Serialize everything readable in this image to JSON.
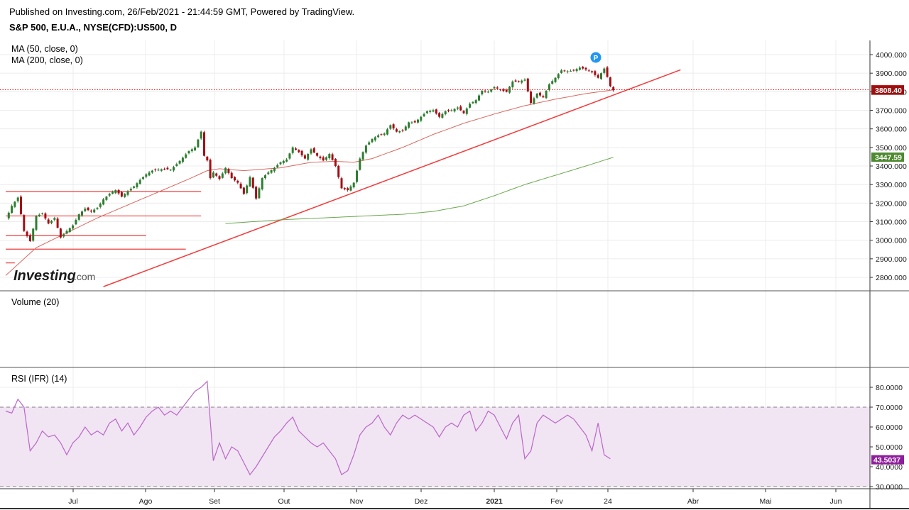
{
  "header": {
    "published": "Published on Investing.com, 26/Feb/2021 - 21:44:59 GMT, Powered by TradingView.",
    "symbol": "S&P 500, E.U.A., NYSE(CFD):US500, D"
  },
  "logo": {
    "brand": "Investing",
    "suffix": ".com"
  },
  "marker_badge": "P",
  "colors": {
    "up": "#2e7d32",
    "down": "#a50d14",
    "ma50": "#d9695f",
    "ma200": "#6aa84f",
    "trend": "#f23b3b",
    "rsi": "#b968c7",
    "rsi_band": "#f1e4f3",
    "price_line": "#e01010"
  },
  "chart_data": [
    {
      "type": "candlestick",
      "title": "S&P 500, E.U.A., NYSE(CFD):US500, D",
      "indicators": [
        "MA (50, close, 0)",
        "MA (200, close, 0)"
      ],
      "y_ticks": [
        "4000.000",
        "3900.000",
        "3800.000",
        "3700.000",
        "3600.000",
        "3500.000",
        "3400.000",
        "3300.000",
        "3200.000",
        "3100.000",
        "3000.000",
        "2900.000",
        "2800.000"
      ],
      "ylim": [
        2750,
        4040
      ],
      "price_labels": {
        "last": "3811.15",
        "close": "3808.40",
        "ma200": "3447.59"
      },
      "x_ticks": [
        "Jul",
        "Ago",
        "Set",
        "Out",
        "Nov",
        "Dez",
        "2021",
        "Fev",
        "24",
        "Abr",
        "Mai",
        "Jun"
      ],
      "x_ticks_bold": [
        "2021"
      ],
      "close_key": [
        [
          0,
          3112
        ],
        [
          2,
          3185
        ],
        [
          4,
          3230
        ],
        [
          6,
          3050
        ],
        [
          8,
          2995
        ],
        [
          10,
          3130
        ],
        [
          12,
          3145
        ],
        [
          14,
          3090
        ],
        [
          16,
          3120
        ],
        [
          18,
          3015
        ],
        [
          20,
          3050
        ],
        [
          22,
          3080
        ],
        [
          24,
          3140
        ],
        [
          26,
          3170
        ],
        [
          28,
          3155
        ],
        [
          30,
          3175
        ],
        [
          32,
          3220
        ],
        [
          34,
          3250
        ],
        [
          36,
          3270
        ],
        [
          38,
          3235
        ],
        [
          40,
          3265
        ],
        [
          42,
          3290
        ],
        [
          44,
          3325
        ],
        [
          46,
          3355
        ],
        [
          48,
          3375
        ],
        [
          50,
          3380
        ],
        [
          52,
          3385
        ],
        [
          54,
          3380
        ],
        [
          56,
          3410
        ],
        [
          58,
          3445
        ],
        [
          60,
          3480
        ],
        [
          62,
          3500
        ],
        [
          64,
          3585
        ],
        [
          65,
          3455
        ],
        [
          66,
          3430
        ],
        [
          67,
          3335
        ],
        [
          68,
          3365
        ],
        [
          70,
          3330
        ],
        [
          72,
          3390
        ],
        [
          74,
          3335
        ],
        [
          76,
          3310
        ],
        [
          78,
          3250
        ],
        [
          80,
          3340
        ],
        [
          82,
          3225
        ],
        [
          84,
          3335
        ],
        [
          86,
          3365
        ],
        [
          88,
          3390
        ],
        [
          90,
          3420
        ],
        [
          92,
          3435
        ],
        [
          94,
          3500
        ],
        [
          96,
          3475
        ],
        [
          98,
          3440
        ],
        [
          100,
          3490
        ],
        [
          102,
          3455
        ],
        [
          104,
          3430
        ],
        [
          106,
          3465
        ],
        [
          108,
          3400
        ],
        [
          110,
          3280
        ],
        [
          112,
          3270
        ],
        [
          114,
          3310
        ],
        [
          116,
          3440
        ],
        [
          118,
          3510
        ],
        [
          120,
          3545
        ],
        [
          122,
          3565
        ],
        [
          124,
          3575
        ],
        [
          126,
          3620
        ],
        [
          128,
          3585
        ],
        [
          130,
          3590
        ],
        [
          132,
          3635
        ],
        [
          134,
          3635
        ],
        [
          136,
          3665
        ],
        [
          138,
          3695
        ],
        [
          140,
          3700
        ],
        [
          142,
          3665
        ],
        [
          144,
          3695
        ],
        [
          146,
          3700
        ],
        [
          148,
          3715
        ],
        [
          150,
          3685
        ],
        [
          152,
          3735
        ],
        [
          154,
          3755
        ],
        [
          156,
          3805
        ],
        [
          158,
          3800
        ],
        [
          160,
          3825
        ],
        [
          162,
          3810
        ],
        [
          164,
          3800
        ],
        [
          166,
          3855
        ],
        [
          168,
          3855
        ],
        [
          170,
          3865
        ],
        [
          172,
          3740
        ],
        [
          174,
          3790
        ],
        [
          176,
          3770
        ],
        [
          178,
          3840
        ],
        [
          180,
          3875
        ],
        [
          182,
          3915
        ],
        [
          184,
          3910
        ],
        [
          186,
          3915
        ],
        [
          188,
          3930
        ],
        [
          190,
          3920
        ],
        [
          192,
          3905
        ],
        [
          194,
          3875
        ],
        [
          196,
          3925
        ],
        [
          197,
          3880
        ],
        [
          198,
          3830
        ],
        [
          199,
          3808
        ]
      ],
      "ma50_key": [
        [
          0,
          2810
        ],
        [
          10,
          2960
        ],
        [
          20,
          3040
        ],
        [
          30,
          3120
        ],
        [
          40,
          3190
        ],
        [
          50,
          3260
        ],
        [
          60,
          3330
        ],
        [
          66,
          3375
        ],
        [
          70,
          3385
        ],
        [
          78,
          3375
        ],
        [
          90,
          3390
        ],
        [
          100,
          3420
        ],
        [
          108,
          3425
        ],
        [
          114,
          3420
        ],
        [
          120,
          3440
        ],
        [
          130,
          3500
        ],
        [
          140,
          3570
        ],
        [
          150,
          3630
        ],
        [
          160,
          3680
        ],
        [
          170,
          3725
        ],
        [
          180,
          3760
        ],
        [
          190,
          3790
        ],
        [
          199,
          3810
        ]
      ],
      "ma200_key": [
        [
          72,
          3090
        ],
        [
          90,
          3110
        ],
        [
          110,
          3125
        ],
        [
          130,
          3140
        ],
        [
          140,
          3155
        ],
        [
          150,
          3185
        ],
        [
          160,
          3240
        ],
        [
          170,
          3300
        ],
        [
          180,
          3350
        ],
        [
          190,
          3400
        ],
        [
          199,
          3447
        ]
      ],
      "trendline": [
        [
          32,
          2750
        ],
        [
          221,
          3918
        ]
      ],
      "support_lines": [
        {
          "from": 0,
          "to": 64,
          "y": 3262
        },
        {
          "from": 0,
          "to": 64,
          "y": 3131
        },
        {
          "from": 0,
          "to": 46,
          "y": 3025
        },
        {
          "from": 0,
          "to": 59,
          "y": 2952
        },
        {
          "from": 0,
          "to": 3,
          "y": 2878
        }
      ]
    },
    {
      "type": "bar",
      "title": "Volume (20)",
      "values": []
    },
    {
      "type": "line",
      "title": "RSI (IFR) (14)",
      "y_ticks": [
        "80.0000",
        "70.0000",
        "60.0000",
        "50.0000",
        "40.0000",
        "30.0000"
      ],
      "ylim": [
        28,
        86
      ],
      "band": [
        30,
        70
      ],
      "last_label": "43.5037",
      "values_key": [
        [
          0,
          68
        ],
        [
          2,
          67
        ],
        [
          4,
          74
        ],
        [
          6,
          70
        ],
        [
          8,
          48
        ],
        [
          10,
          52
        ],
        [
          12,
          58
        ],
        [
          14,
          55
        ],
        [
          16,
          56
        ],
        [
          18,
          52
        ],
        [
          20,
          46
        ],
        [
          22,
          52
        ],
        [
          24,
          55
        ],
        [
          26,
          60
        ],
        [
          28,
          56
        ],
        [
          30,
          58
        ],
        [
          32,
          56
        ],
        [
          34,
          62
        ],
        [
          36,
          64
        ],
        [
          38,
          58
        ],
        [
          40,
          62
        ],
        [
          42,
          56
        ],
        [
          44,
          60
        ],
        [
          46,
          65
        ],
        [
          48,
          68
        ],
        [
          50,
          70
        ],
        [
          52,
          66
        ],
        [
          54,
          68
        ],
        [
          56,
          66
        ],
        [
          58,
          70
        ],
        [
          60,
          74
        ],
        [
          62,
          78
        ],
        [
          64,
          80
        ],
        [
          66,
          83
        ],
        [
          68,
          43
        ],
        [
          70,
          52
        ],
        [
          72,
          44
        ],
        [
          74,
          50
        ],
        [
          76,
          48
        ],
        [
          78,
          42
        ],
        [
          80,
          36
        ],
        [
          82,
          40
        ],
        [
          84,
          45
        ],
        [
          86,
          50
        ],
        [
          88,
          55
        ],
        [
          90,
          58
        ],
        [
          92,
          62
        ],
        [
          94,
          65
        ],
        [
          96,
          58
        ],
        [
          98,
          55
        ],
        [
          100,
          52
        ],
        [
          102,
          50
        ],
        [
          104,
          52
        ],
        [
          106,
          48
        ],
        [
          108,
          44
        ],
        [
          110,
          36
        ],
        [
          112,
          38
        ],
        [
          114,
          46
        ],
        [
          116,
          56
        ],
        [
          118,
          60
        ],
        [
          120,
          62
        ],
        [
          122,
          66
        ],
        [
          124,
          60
        ],
        [
          126,
          56
        ],
        [
          128,
          62
        ],
        [
          130,
          66
        ],
        [
          132,
          64
        ],
        [
          134,
          66
        ],
        [
          136,
          64
        ],
        [
          138,
          62
        ],
        [
          140,
          60
        ],
        [
          142,
          55
        ],
        [
          144,
          60
        ],
        [
          146,
          62
        ],
        [
          148,
          60
        ],
        [
          150,
          66
        ],
        [
          152,
          68
        ],
        [
          154,
          58
        ],
        [
          156,
          62
        ],
        [
          158,
          68
        ],
        [
          160,
          66
        ],
        [
          162,
          60
        ],
        [
          164,
          54
        ],
        [
          166,
          62
        ],
        [
          168,
          66
        ],
        [
          170,
          44
        ],
        [
          172,
          48
        ],
        [
          174,
          62
        ],
        [
          176,
          66
        ],
        [
          178,
          64
        ],
        [
          180,
          62
        ],
        [
          182,
          64
        ],
        [
          184,
          66
        ],
        [
          186,
          64
        ],
        [
          188,
          60
        ],
        [
          190,
          56
        ],
        [
          192,
          48
        ],
        [
          194,
          62
        ],
        [
          196,
          46
        ],
        [
          198,
          44
        ]
      ]
    }
  ]
}
